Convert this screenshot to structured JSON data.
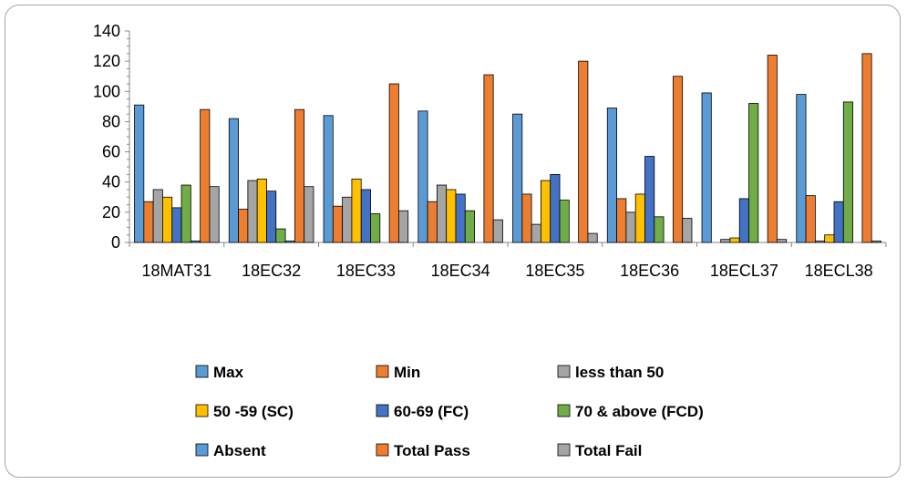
{
  "chart_data": {
    "type": "bar",
    "title": "",
    "xlabel": "",
    "ylabel": "",
    "ylim": [
      0,
      140
    ],
    "yticks": [
      0,
      20,
      40,
      60,
      80,
      100,
      120,
      140
    ],
    "grid": false,
    "legend_position": "bottom",
    "categories": [
      "18MAT31",
      "18EC32",
      "18EC33",
      "18EC34",
      "18EC35",
      "18EC36",
      "18ECL37",
      "18ECL38"
    ],
    "series": [
      {
        "name": "Max",
        "color": "#5b9bd5",
        "values": [
          91,
          82,
          84,
          87,
          85,
          89,
          99,
          98
        ]
      },
      {
        "name": "Min",
        "color": "#ed7d31",
        "values": [
          27,
          22,
          24,
          27,
          32,
          29,
          0,
          31
        ]
      },
      {
        "name": "less than 50",
        "color": "#a5a5a5",
        "values": [
          35,
          41,
          30,
          38,
          12,
          20,
          2,
          1
        ]
      },
      {
        "name": "50 -59 (SC)",
        "color": "#ffc000",
        "values": [
          30,
          42,
          42,
          35,
          41,
          32,
          3,
          5
        ]
      },
      {
        "name": "60-69 (FC)",
        "color": "#4472c4",
        "values": [
          23,
          34,
          35,
          32,
          45,
          57,
          29,
          27
        ]
      },
      {
        "name": "70 & above (FCD)",
        "color": "#70ad47",
        "values": [
          38,
          9,
          19,
          21,
          28,
          17,
          92,
          93
        ]
      },
      {
        "name": "Absent",
        "color": "#5b9bd5",
        "values": [
          1,
          1,
          0,
          0,
          0,
          0,
          0,
          0
        ]
      },
      {
        "name": "Total Pass",
        "color": "#ed7d31",
        "values": [
          88,
          88,
          105,
          111,
          120,
          110,
          124,
          125
        ]
      },
      {
        "name": "Total Fail",
        "color": "#a5a5a5",
        "values": [
          37,
          37,
          21,
          15,
          6,
          16,
          2,
          1
        ]
      }
    ]
  }
}
